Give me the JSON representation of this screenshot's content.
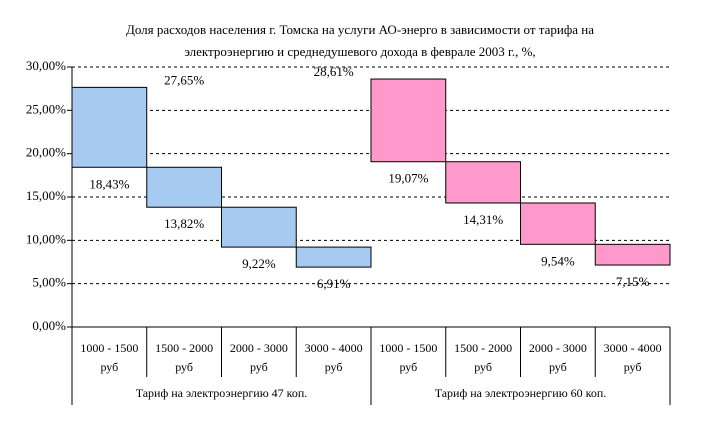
{
  "chart_data": {
    "type": "floating_bar",
    "title": [
      "Доля расходов населения г. Томска на услуги АО-энерго в зависимости от  тарифа на",
      "электроэнергию и среднедушевого дохода в феврале 2003 г., %,"
    ],
    "ylim": [
      0,
      30
    ],
    "yticks": [
      {
        "value": 0,
        "label": "0,00%"
      },
      {
        "value": 5,
        "label": "5,00%"
      },
      {
        "value": 10,
        "label": "10,00%"
      },
      {
        "value": 15,
        "label": "15,00%"
      },
      {
        "value": 20,
        "label": "20,00%"
      },
      {
        "value": 25,
        "label": "25,00%"
      },
      {
        "value": 30,
        "label": "30,00%"
      }
    ],
    "grid": true,
    "unit": "руб",
    "series": [
      {
        "name": "Тариф на электроэнергию 47 коп.",
        "color": "#a6caf0",
        "categories": [
          "1000 - 1500",
          "1500 - 2000",
          "2000 - 3000",
          "3000 - 4000"
        ],
        "levels": [
          27.65,
          18.43,
          13.82,
          9.22,
          6.91
        ],
        "value_labels": [
          "27,65%",
          "18,43%",
          "13,82%",
          "9,22%",
          "6,91%"
        ]
      },
      {
        "name": "Тариф на электроэнергию 60 коп.",
        "color": "#ff99cc",
        "categories": [
          "1000 - 1500",
          "1500 - 2000",
          "2000 - 3000",
          "3000 - 4000"
        ],
        "levels": [
          28.61,
          19.07,
          14.31,
          9.54,
          7.15
        ],
        "value_labels": [
          "28,61%",
          "19,07%",
          "14,31%",
          "9,54%",
          "7,15%"
        ]
      }
    ]
  }
}
